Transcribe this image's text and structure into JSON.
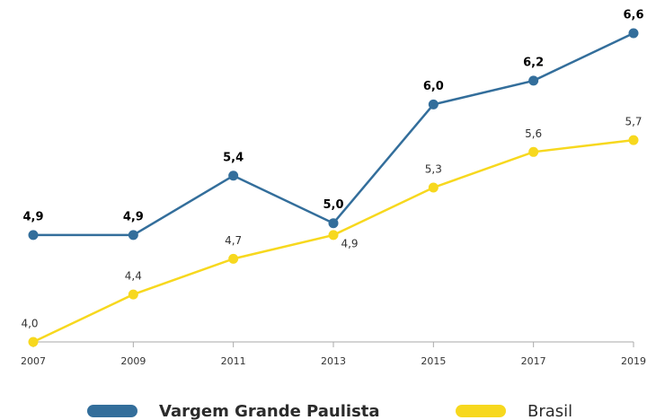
{
  "chart_data": {
    "type": "line",
    "categories": [
      "2007",
      "2009",
      "2011",
      "2013",
      "2015",
      "2017",
      "2019"
    ],
    "series": [
      {
        "name": "Vargem Grande Paulista",
        "color": "#336e9b",
        "values": [
          4.9,
          4.9,
          5.4,
          5.0,
          6.0,
          6.2,
          6.6
        ],
        "value_labels": [
          "4,9",
          "4,9",
          "5,4",
          "5,0",
          "6,0",
          "6,2",
          "6,6"
        ]
      },
      {
        "name": "Brasil",
        "color": "#f7d81e",
        "values": [
          4.0,
          4.4,
          4.7,
          4.9,
          5.3,
          5.6,
          5.7
        ],
        "value_labels": [
          "4,0",
          "4,4",
          "4,7",
          "4,9",
          "5,3",
          "5,6",
          "5,7"
        ]
      }
    ]
  }
}
